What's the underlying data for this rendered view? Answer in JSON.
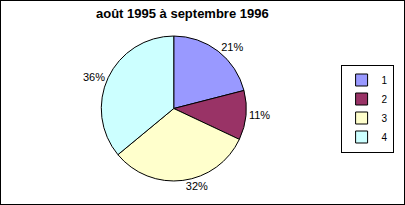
{
  "chart_data": {
    "type": "pie",
    "title": "août 1995 à septembre 1996",
    "categories": [
      "1",
      "2",
      "3",
      "4"
    ],
    "values": [
      21,
      11,
      32,
      36
    ],
    "value_labels": [
      "21%",
      "11%",
      "32%",
      "36%"
    ],
    "colors": [
      "#9999ff",
      "#993366",
      "#ffffcc",
      "#ccffff"
    ],
    "data_labels": true,
    "legend": "right"
  }
}
